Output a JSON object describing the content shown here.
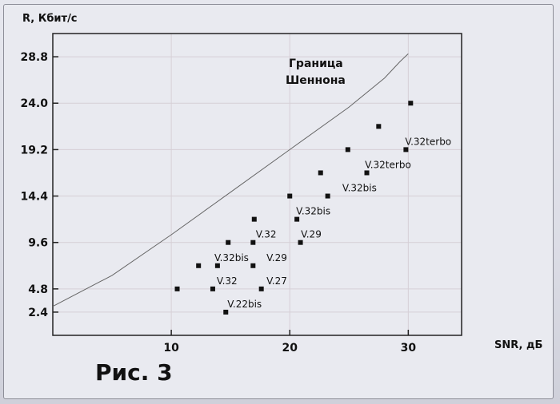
{
  "figure_label": "Рис. 3",
  "chart_data": {
    "type": "scatter",
    "ylabel": "R, Кбит/с",
    "xlabel": "SNR, дБ",
    "xlim": [
      0,
      34.5
    ],
    "ylim": [
      0,
      31.2
    ],
    "x_ticks": [
      10,
      20,
      30
    ],
    "y_ticks": [
      2.4,
      4.8,
      9.6,
      14.4,
      19.2,
      24.0,
      28.8
    ],
    "y_tick_labels": [
      "2.4",
      "4.8",
      "9.6",
      "14.4",
      "19.2",
      "24.0",
      "28.8"
    ],
    "grid": true,
    "points": [
      {
        "x": 10.5,
        "y": 4.8
      },
      {
        "x": 12.3,
        "y": 7.2
      },
      {
        "x": 13.5,
        "y": 4.8
      },
      {
        "x": 13.9,
        "y": 7.2
      },
      {
        "x": 14.6,
        "y": 2.4
      },
      {
        "x": 14.8,
        "y": 9.6
      },
      {
        "x": 16.9,
        "y": 7.2
      },
      {
        "x": 16.9,
        "y": 9.6
      },
      {
        "x": 17.0,
        "y": 12.0
      },
      {
        "x": 17.6,
        "y": 4.8
      },
      {
        "x": 20.0,
        "y": 14.4
      },
      {
        "x": 20.6,
        "y": 12.0
      },
      {
        "x": 20.9,
        "y": 9.6
      },
      {
        "x": 22.6,
        "y": 16.8
      },
      {
        "x": 23.2,
        "y": 14.4
      },
      {
        "x": 24.9,
        "y": 19.2
      },
      {
        "x": 26.5,
        "y": 16.8
      },
      {
        "x": 27.5,
        "y": 21.6
      },
      {
        "x": 29.8,
        "y": 19.2
      },
      {
        "x": 30.2,
        "y": 24.0
      }
    ],
    "point_labels": [
      {
        "text": "V.22bis",
        "x": 14.6,
        "y": 2.4
      },
      {
        "text": "V.32",
        "x": 13.7,
        "y": 4.8
      },
      {
        "text": "V.27",
        "x": 17.9,
        "y": 4.8
      },
      {
        "text": "V.32bis",
        "x": 13.5,
        "y": 7.2
      },
      {
        "text": "V.29",
        "x": 17.9,
        "y": 7.2
      },
      {
        "text": "V.32",
        "x": 17.0,
        "y": 9.6
      },
      {
        "text": "V.29",
        "x": 20.8,
        "y": 9.6
      },
      {
        "text": "V.32bis",
        "x": 20.4,
        "y": 12.0
      },
      {
        "text": "V.32bis",
        "x": 24.3,
        "y": 14.4
      },
      {
        "text": "V.32terbo",
        "x": 26.2,
        "y": 16.8
      },
      {
        "text": "V.32terbo",
        "x": 29.6,
        "y": 19.2
      }
    ],
    "shannon_curve": {
      "label_line1": "Граница",
      "label_line2": "Шеннона",
      "points": [
        {
          "x": 0.0,
          "y": 3.0
        },
        {
          "x": 5.0,
          "y": 6.2
        },
        {
          "x": 10.0,
          "y": 10.4
        },
        {
          "x": 15.0,
          "y": 14.8
        },
        {
          "x": 20.0,
          "y": 19.2
        },
        {
          "x": 25.0,
          "y": 23.6
        },
        {
          "x": 28.0,
          "y": 26.6
        },
        {
          "x": 29.3,
          "y": 28.3
        },
        {
          "x": 30.0,
          "y": 29.1
        }
      ]
    }
  }
}
